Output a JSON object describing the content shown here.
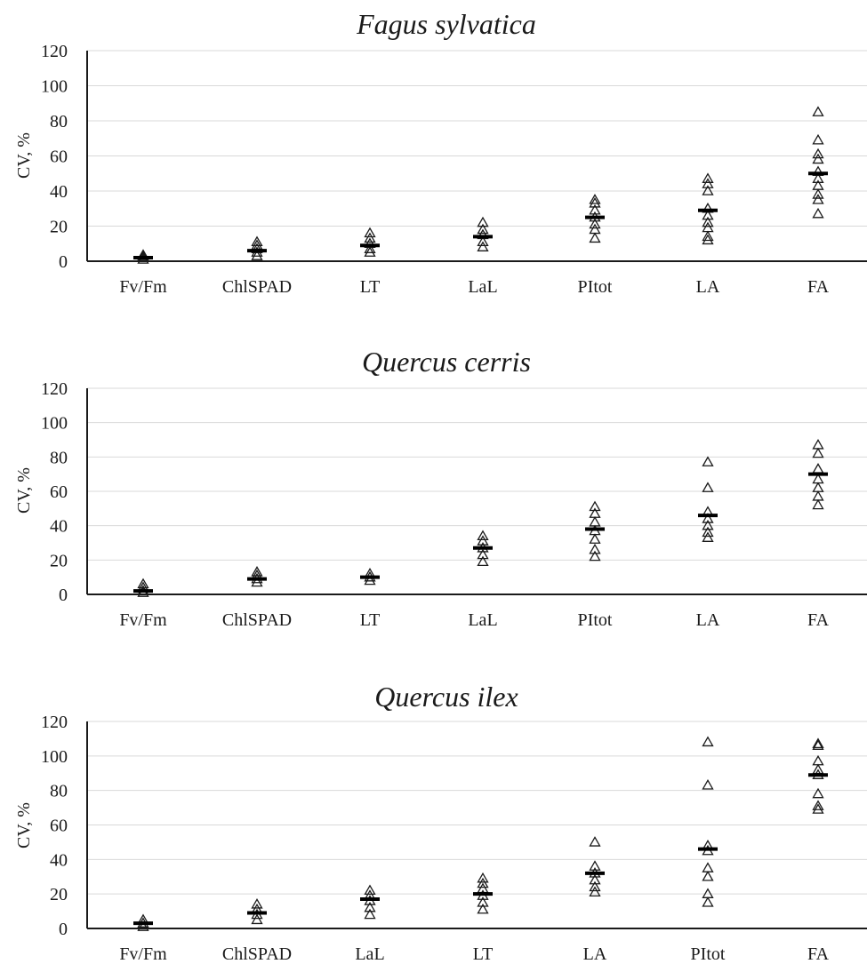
{
  "chart_data": [
    {
      "type": "scatter",
      "title": "Fagus sylvatica",
      "ylabel": "CV, %",
      "ylim": [
        0,
        120
      ],
      "yticks": [
        0,
        20,
        40,
        60,
        80,
        100,
        120
      ],
      "grid": true,
      "categories": [
        "Fv/Fm",
        "ChlSPAD",
        "LT",
        "LaL",
        "PItot",
        "LA",
        "FA"
      ],
      "points": [
        [
          1,
          2,
          3,
          3.5
        ],
        [
          3,
          5,
          7,
          9,
          11
        ],
        [
          5,
          7,
          10,
          13,
          16
        ],
        [
          8,
          11,
          15,
          18,
          22
        ],
        [
          13,
          18,
          21,
          25,
          29,
          33,
          35
        ],
        [
          12,
          14,
          19,
          22,
          26,
          30,
          40,
          44,
          47
        ],
        [
          27,
          35,
          38,
          43,
          47,
          51,
          58,
          61,
          69,
          85
        ]
      ],
      "means": [
        2,
        6,
        9,
        14,
        25,
        29,
        50
      ]
    },
    {
      "type": "scatter",
      "title": "Quercus cerris",
      "ylabel": "CV, %",
      "ylim": [
        0,
        120
      ],
      "yticks": [
        0,
        20,
        40,
        60,
        80,
        100,
        120
      ],
      "grid": true,
      "categories": [
        "Fv/Fm",
        "ChlSPAD",
        "LT",
        "LaL",
        "PItot",
        "LA",
        "FA"
      ],
      "points": [
        [
          1,
          2,
          4,
          6
        ],
        [
          7,
          9,
          11,
          13
        ],
        [
          8,
          10,
          12
        ],
        [
          19,
          23,
          27,
          31,
          34
        ],
        [
          22,
          26,
          32,
          37,
          42,
          47,
          51
        ],
        [
          33,
          36,
          40,
          44,
          48,
          62,
          77
        ],
        [
          52,
          57,
          62,
          67,
          73,
          82,
          87
        ]
      ],
      "means": [
        2,
        9,
        10,
        27,
        38,
        46,
        70
      ]
    },
    {
      "type": "scatter",
      "title": "Quercus ilex",
      "ylabel": "CV, %",
      "ylim": [
        0,
        120
      ],
      "yticks": [
        0,
        20,
        40,
        60,
        80,
        100,
        120
      ],
      "grid": true,
      "categories": [
        "Fv/Fm",
        "ChlSPAD",
        "LaL",
        "LT",
        "LA",
        "PItot",
        "FA"
      ],
      "points": [
        [
          1,
          3,
          5
        ],
        [
          5,
          8,
          11,
          14
        ],
        [
          8,
          12,
          16,
          19,
          22
        ],
        [
          11,
          15,
          19,
          23,
          26,
          29
        ],
        [
          21,
          24,
          28,
          32,
          36,
          50
        ],
        [
          15,
          20,
          30,
          35,
          45,
          48,
          83,
          108
        ],
        [
          69,
          71,
          78,
          89,
          92,
          97,
          106,
          107
        ]
      ],
      "means": [
        3,
        9,
        17,
        20,
        32,
        46,
        89
      ]
    }
  ]
}
